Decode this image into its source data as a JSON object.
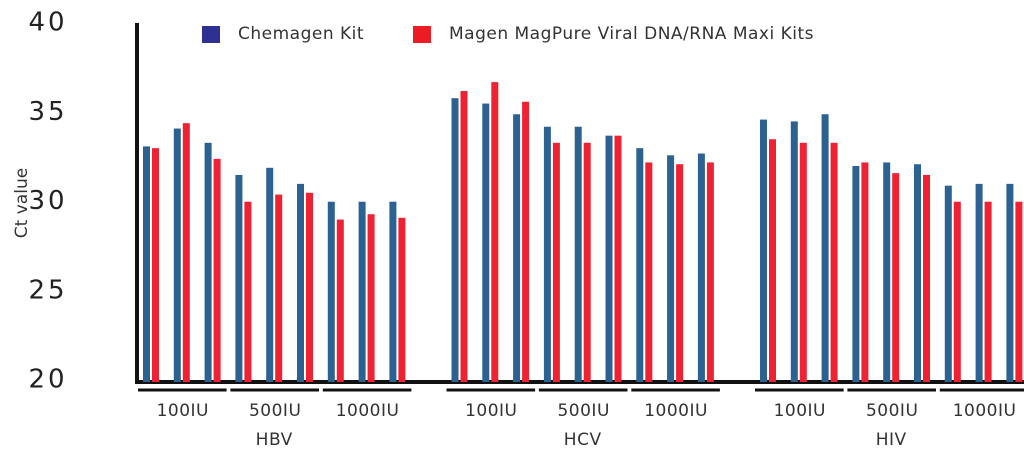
{
  "chart_data": {
    "type": "grouped_bar",
    "y_label": "Ct value",
    "ylim": [
      20,
      40
    ],
    "yticks": [
      20,
      25,
      30,
      35,
      40
    ],
    "categories": [
      null,
      null,
      null,
      null,
      null,
      null,
      null,
      null,
      null,
      null,
      null,
      null,
      null,
      null,
      null,
      null,
      null,
      null,
      null,
      null,
      null,
      null,
      null,
      null,
      null,
      null,
      null
    ],
    "groups": [
      {
        "label": "HBV",
        "doses": [
          "100IU",
          "500IU",
          "1000IU"
        ]
      },
      {
        "label": "HCV",
        "doses": [
          "100IU",
          "500IU",
          "1000IU"
        ]
      },
      {
        "label": "HIV",
        "doses": [
          "100IU",
          "500IU",
          "1000IU"
        ]
      }
    ],
    "series": [
      {
        "name": "Chemagen Kit",
        "color": "#2c6292",
        "legend_color": "#2e3192",
        "values": [
          33.2,
          34.2,
          33.4,
          31.6,
          32.0,
          31.1,
          30.1,
          30.1,
          30.1,
          35.9,
          35.6,
          35.0,
          34.3,
          34.3,
          33.8,
          33.1,
          32.7,
          32.8,
          34.7,
          34.6,
          35.0,
          32.1,
          32.3,
          32.2,
          31.0,
          31.1,
          31.1
        ]
      },
      {
        "name": "Magen MagPure Viral DNA/RNA Maxi Kits",
        "color": "#ee2233",
        "legend_color": "#ec1c24",
        "values": [
          33.1,
          34.5,
          32.5,
          30.1,
          30.5,
          30.6,
          29.1,
          29.4,
          29.2,
          36.3,
          36.8,
          35.7,
          33.4,
          33.4,
          33.8,
          32.3,
          32.2,
          32.3,
          33.6,
          33.4,
          33.4,
          32.3,
          31.7,
          31.6,
          30.1,
          30.1,
          30.1
        ]
      }
    ]
  }
}
